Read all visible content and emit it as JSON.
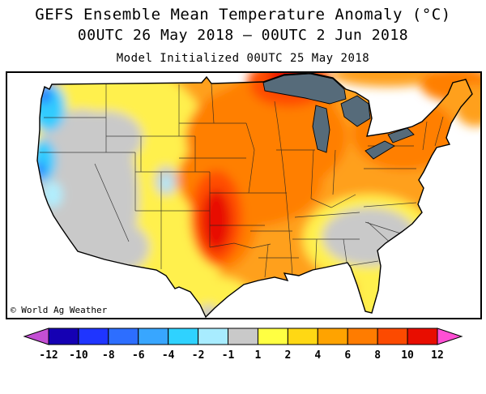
{
  "header": {
    "title": "GEFS Ensemble Mean Temperature Anomaly (°C)",
    "period": "00UTC 26 May 2018 — 00UTC 2 Jun 2018",
    "initialized": "Model Initialized 00UTC 25 May 2018"
  },
  "map": {
    "watermark": "© World Ag Weather",
    "region_shown": "Continental United States with southern Canada fringe and northern Mexico (no data outside US shading)"
  },
  "chart_data": {
    "type": "heatmap",
    "title": "GEFS Ensemble Mean Temperature Anomaly (°C)",
    "units": "°C",
    "valid_period": "00UTC 26 May 2018 — 00UTC 2 Jun 2018",
    "model_initialized": "00UTC 25 May 2018",
    "legend": {
      "position": "bottom",
      "tick_labels": [
        "-12",
        "-10",
        "-8",
        "-6",
        "-4",
        "-2",
        "-1",
        "1",
        "2",
        "4",
        "6",
        "8",
        "10",
        "12"
      ],
      "colors": [
        "#c44fd4",
        "#1500b3",
        "#1f35ff",
        "#2d6eff",
        "#38a6ff",
        "#2fd2ff",
        "#a8ecff",
        "#c9c9c9",
        "#ffff42",
        "#ffd814",
        "#ffa300",
        "#ff7c00",
        "#fc4a00",
        "#e80d00",
        "#ff4fd4"
      ]
    },
    "palette": {
      "orange": "#ffa01e",
      "dorange": "#ff7f00",
      "rorange": "#ff4d00",
      "red": "#e81000",
      "yellow": "#fff04d",
      "gray": "#c9c9c9",
      "cyan": "#33ccff",
      "lightcyan": "#b0efff",
      "blue": "#2b7bff",
      "lakes": "#566b7a"
    },
    "anomaly_regions": [
      {
        "area": "Washington / Oregon coast",
        "anomaly_c": "-6 to -2"
      },
      {
        "area": "Northern California coast",
        "anomaly_c": "-6 to -2"
      },
      {
        "area": "California, Nevada, Utah, western Arizona",
        "anomaly_c": "-1 to 1"
      },
      {
        "area": "Colorado high Rockies (small pockets)",
        "anomaly_c": "-2 to 1"
      },
      {
        "area": "Idaho, western Montana, New Mexico, far west Texas",
        "anomaly_c": "1 to 2"
      },
      {
        "area": "Central Plains core (Kansas / Oklahoma / SE Colorado)",
        "anomaly_c": "8 to 12"
      },
      {
        "area": "North Dakota / northern Minnesota border",
        "anomaly_c": "8 to 12"
      },
      {
        "area": "Upper Midwest, Great Lakes, Northeast",
        "anomaly_c": "4 to 8"
      },
      {
        "area": "Southeast (Georgia, South Carolina, eastern Alabama)",
        "anomaly_c": "-1 to 1"
      },
      {
        "area": "Texas, Gulf Coast, Florida peninsula",
        "anomaly_c": "1 to 4"
      }
    ]
  }
}
